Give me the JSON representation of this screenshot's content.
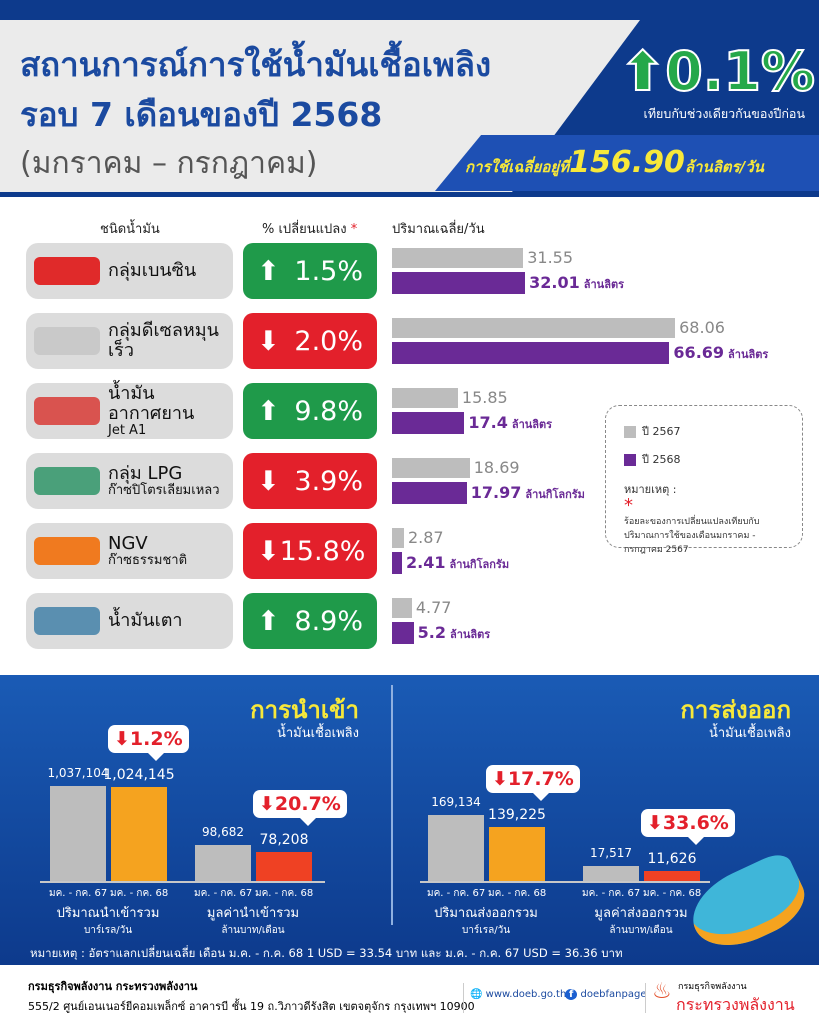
{
  "header": {
    "title_line1": "สถานการณ์การใช้น้ำมันเชื้อเพลิง",
    "title_line2": "รอบ 7 เดือนของปี 2568",
    "title_line3": "(มกราคม – กรกฎาคม)",
    "total_change": "0.1%",
    "total_change_direction": "up",
    "total_change_note": "เทียบกับช่วงเดียวกันของปีก่อน",
    "avg_prefix": "การใช้เฉลี่ยอยู่ที่",
    "avg_value": "156.90",
    "avg_unit": "ล้านลิตร/วัน"
  },
  "table": {
    "col_type": "ชนิดน้ำมัน",
    "col_change": "% เปลี่ยนแปลง",
    "col_change_mark": "*",
    "col_volume": "ปริมาณเฉลี่ย/วัน"
  },
  "legend": {
    "y2567": "ปี 2567",
    "y2568": "ปี 2568",
    "note_label": "หมายเหตุ :",
    "note_mark": "*",
    "note_text": "ร้อยละของการเปลี่ยนแปลงเทียบกับปริมาณการใช้ของเดือนมกราคม - กรกฎาคม 2567"
  },
  "colors": {
    "y2567": "#bdbdbd",
    "y2568": "#6a2a96",
    "up": "#1f9a4a",
    "down": "#e3202b",
    "prev": "#bdbdbd",
    "curr_volume": "#f5a31f",
    "curr_value": "#ef4123"
  },
  "import": {
    "title": "การนำเข้า",
    "subtitle": "น้ำมันเชื้อเพลิง"
  },
  "export": {
    "title": "การส่งออก",
    "subtitle": "น้ำมันเชื้อเพลิง"
  },
  "chart_data": [
    {
      "type": "bar",
      "orientation": "horizontal",
      "categories": [
        "กลุ่มเบนซิน",
        "กลุ่มดีเซลหมุนเร็ว",
        "น้ำมันอากาศยาน Jet A1",
        "กลุ่ม LPG ก๊าซปิโตรเลียมเหลว",
        "NGV ก๊าซธรรมชาติ",
        "น้ำมันเตา"
      ],
      "category_lines": [
        [
          "กลุ่มเบนซิน",
          ""
        ],
        [
          "กลุ่มดีเซลหมุนเร็ว",
          ""
        ],
        [
          "น้ำมันอากาศยาน",
          "Jet A1"
        ],
        [
          "กลุ่ม LPG",
          "ก๊าซปิโตรเลียมเหลว"
        ],
        [
          "NGV",
          "ก๊าซธรรมชาติ"
        ],
        [
          "น้ำมันเตา",
          ""
        ]
      ],
      "icons": [
        "car-icon",
        "pickup-truck-icon",
        "airplane-icon",
        "gas-cylinder-icon",
        "bus-icon",
        "refinery-icon"
      ],
      "changes": [
        "1.5%",
        "2.0%",
        "9.8%",
        "3.9%",
        "15.8%",
        "8.9%"
      ],
      "directions": [
        "up",
        "down",
        "up",
        "down",
        "down",
        "up"
      ],
      "units": [
        "ล้านลิตร",
        "ล้านลิตร",
        "ล้านลิตร",
        "ล้านกิโลกรัม",
        "ล้านกิโลกรัม",
        "ล้านลิตร"
      ],
      "series": [
        {
          "name": "ปี 2567",
          "values": [
            31.55,
            68.06,
            15.85,
            18.69,
            2.87,
            4.77
          ]
        },
        {
          "name": "ปี 2568",
          "values": [
            32.01,
            66.69,
            17.4,
            17.97,
            2.41,
            5.2
          ]
        }
      ],
      "legend": "right"
    },
    {
      "type": "bar",
      "title": "ปริมาณนำเข้ารวม",
      "unit": "บาร์เรล/วัน",
      "categories": [
        "มค. - กค. 67",
        "มค. - กค. 68"
      ],
      "values": [
        1037104,
        1024145
      ],
      "labels": [
        "1,037,104",
        "1,024,145"
      ],
      "change": "1.2%",
      "direction": "down"
    },
    {
      "type": "bar",
      "title": "มูลค่านำเข้ารวม",
      "unit": "ล้านบาท/เดือน",
      "categories": [
        "มค. - กค. 67",
        "มค. - กค. 68"
      ],
      "values": [
        98682,
        78208
      ],
      "labels": [
        "98,682",
        "78,208"
      ],
      "change": "20.7%",
      "direction": "down"
    },
    {
      "type": "bar",
      "title": "ปริมาณส่งออกรวม",
      "unit": "บาร์เรล/วัน",
      "categories": [
        "มค. - กค. 67",
        "มค. - กค. 68"
      ],
      "values": [
        169134,
        139225
      ],
      "labels": [
        "169,134",
        "139,225"
      ],
      "change": "17.7%",
      "direction": "down"
    },
    {
      "type": "bar",
      "title": "มูลค่าส่งออกรวม",
      "unit": "ล้านบาท/เดือน",
      "categories": [
        "มค. - กค. 67",
        "มค. - กค. 68"
      ],
      "values": [
        17517,
        11626
      ],
      "labels": [
        "17,517",
        "11,626"
      ],
      "change": "33.6%",
      "direction": "down"
    }
  ],
  "note": "หมายเหตุ : อัตราแลกเปลี่ยนเฉลี่ย เดือน ม.ค. - ก.ค. 68 1 USD = 33.54 บาท และ ม.ค. - ก.ค. 67 USD = 36.36 บาท",
  "footer": {
    "org": "กรมธุรกิจพลังงาน กระทรวงพลังงาน",
    "address": "555/2 ศูนย์เอนเนอร์ยีคอมเพล็กซ์ อาคารบี ชั้น 19 ถ.วิภาวดีรังสิต เขตจตุจักร กรุงเทพฯ 10900",
    "website": "www.doeb.go.th",
    "facebook": "doebfanpage",
    "logo_small": "กรมธุรกิจพลังงาน",
    "logo_big": "กระทรวงพลังงาน"
  }
}
